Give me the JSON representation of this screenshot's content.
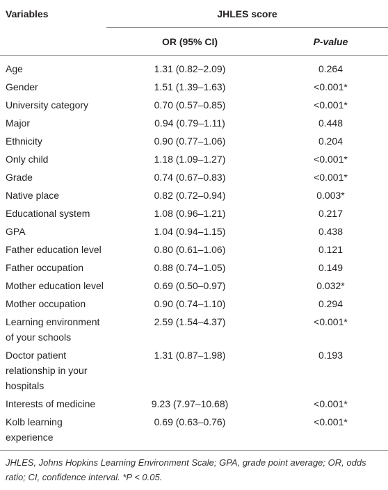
{
  "table": {
    "header": {
      "variables": "Variables",
      "group": "JHLES score",
      "or": "OR (95% CI)",
      "p_value": "P-value"
    },
    "rows": [
      [
        "Age",
        "1.31 (0.82–2.09)",
        "0.264"
      ],
      [
        "Gender",
        "1.51 (1.39–1.63)",
        "<0.001*"
      ],
      [
        "University category",
        "0.70 (0.57–0.85)",
        "<0.001*"
      ],
      [
        "Major",
        "0.94 (0.79–1.11)",
        "0.448"
      ],
      [
        "Ethnicity",
        "0.90 (0.77–1.06)",
        "0.204"
      ],
      [
        "Only child",
        "1.18 (1.09–1.27)",
        "<0.001*"
      ],
      [
        "Grade",
        "0.74 (0.67–0.83)",
        "<0.001*"
      ],
      [
        "Native place",
        "0.82 (0.72–0.94)",
        "0.003*"
      ],
      [
        "Educational system",
        "1.08 (0.96–1.21)",
        "0.217"
      ],
      [
        "GPA",
        "1.04 (0.94–1.15)",
        "0.438"
      ],
      [
        "Father education level",
        "0.80 (0.61–1.06)",
        "0.121"
      ],
      [
        "Father occupation",
        "0.88 (0.74–1.05)",
        "0.149"
      ],
      [
        "Mother education level",
        "0.69 (0.50–0.97)",
        "0.032*"
      ],
      [
        "Mother occupation",
        "0.90 (0.74–1.10)",
        "0.294"
      ],
      [
        "Learning environment of your schools",
        "2.59 (1.54–4.37)",
        "<0.001*"
      ],
      [
        "Doctor patient relationship in your hospitals",
        "1.31 (0.87–1.98)",
        "0.193"
      ],
      [
        "Interests of medicine",
        "9.23 (7.97–10.68)",
        "<0.001*"
      ],
      [
        "Kolb learning experience",
        "0.69 (0.63–0.76)",
        "<0.001*"
      ]
    ],
    "footnote": "JHLES, Johns Hopkins Learning Environment Scale; GPA, grade point average; OR, odds ratio; CI, confidence interval. *P < 0.05."
  }
}
